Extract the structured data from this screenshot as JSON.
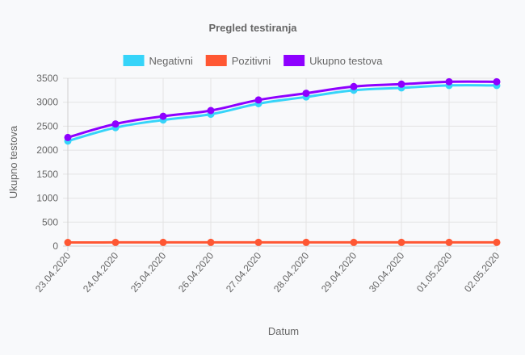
{
  "chart_data": {
    "type": "line",
    "title": "Pregled testiranja",
    "xlabel": "Datum",
    "ylabel": "Ukupno testova",
    "categories": [
      "23.04.2020",
      "24.04.2020",
      "25.04.2020",
      "26.04.2020",
      "27.04.2020",
      "28.04.2020",
      "29.04.2020",
      "30.04.2020",
      "01.05.2020",
      "02.05.2020"
    ],
    "ylim": [
      0,
      3500
    ],
    "yticks": [
      0,
      500,
      1000,
      1500,
      2000,
      2500,
      3000,
      3500
    ],
    "grid": true,
    "legend_position": "top",
    "series": [
      {
        "name": "Negativni",
        "color": "#36d4f9",
        "values": [
          2190,
          2470,
          2630,
          2750,
          2970,
          3110,
          3250,
          3300,
          3350,
          3350
        ]
      },
      {
        "name": "Pozitivni",
        "color": "#ff5733",
        "values": [
          75,
          77,
          77,
          77,
          77,
          77,
          77,
          77,
          77,
          77
        ]
      },
      {
        "name": "Ukupno testova",
        "color": "#8e00ff",
        "values": [
          2265,
          2547,
          2707,
          2827,
          3047,
          3187,
          3327,
          3377,
          3427,
          3427
        ]
      }
    ]
  }
}
